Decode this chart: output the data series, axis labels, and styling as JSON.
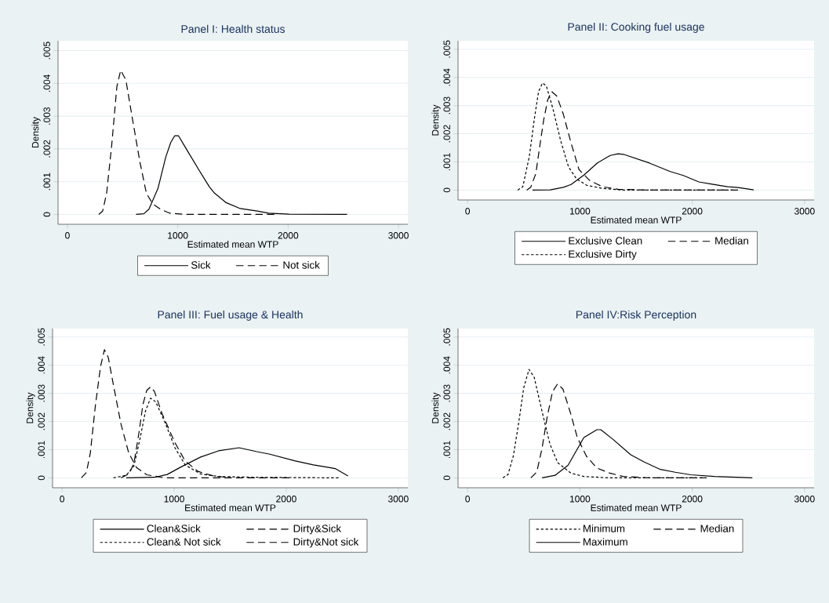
{
  "chart_data": [
    {
      "type": "line",
      "title": "Panel I: Health status",
      "xlabel": "Estimated mean WTP",
      "ylabel": "Density",
      "xlim": [
        -85,
        3085
      ],
      "ylim": [
        -0.0003,
        0.0053
      ],
      "xticks": [
        0,
        1000,
        2000,
        3000
      ],
      "yticks": [
        0,
        {
          "value": 0.001,
          "label": ".001"
        },
        {
          "value": 0.002,
          "label": ".002"
        },
        {
          "value": 0.003,
          "label": ".003"
        },
        {
          "value": 0.004,
          "label": ".004"
        },
        {
          "value": 0.005,
          "label": ".005"
        }
      ],
      "grid": "y",
      "legend": "bottom",
      "marker": "none",
      "series": [
        {
          "name": "Sick",
          "color": "#000000",
          "line_style": "solid",
          "x": [
            622,
            692,
            739,
            821,
            891,
            937,
            972,
            1007,
            1077,
            1193,
            1287,
            1333,
            1438,
            1566,
            1730,
            1823,
            2009,
            2534
          ],
          "values": [
            0,
            2e-05,
            0.00016,
            0.0008,
            0.00175,
            0.0022,
            0.0024,
            0.0024,
            0.002,
            0.00135,
            0.00084,
            0.00065,
            0.00036,
            0.00018,
            0.0001,
            4e-05,
            1e-05,
            0
          ]
        },
        {
          "name": "Not sick",
          "color": "#000000",
          "line_style": "dashed",
          "x": [
            284,
            319,
            355,
            401,
            448,
            483,
            530,
            590,
            657,
            716,
            774,
            844,
            925,
            1077,
            1904
          ],
          "values": [
            0,
            0.0001,
            0.00064,
            0.0021,
            0.0039,
            0.0044,
            0.0041,
            0.0029,
            0.0016,
            0.00064,
            0.00032,
            0.00016,
            4e-05,
            0,
            0
          ]
        }
      ]
    },
    {
      "type": "line",
      "title": "Panel II: Cooking fuel usage",
      "xlabel": "Estimated mean WTP",
      "ylabel": "Density",
      "xlim": [
        -85,
        3085
      ],
      "ylim": [
        -0.00035,
        0.0053
      ],
      "xticks": [
        0,
        1000,
        2000,
        3000
      ],
      "yticks": [
        0,
        {
          "value": 0.001,
          "label": ".001"
        },
        {
          "value": 0.002,
          "label": ".002"
        },
        {
          "value": 0.003,
          "label": ".003"
        },
        {
          "value": 0.004,
          "label": ".004"
        },
        {
          "value": 0.005,
          "label": ".005"
        }
      ],
      "grid": "y",
      "legend": "bottom",
      "marker": "none",
      "series": [
        {
          "name": "Exclusive Clean",
          "color": "#000000",
          "line_style": "solid",
          "x": [
            578,
            736,
            853,
            922,
            1038,
            1154,
            1270,
            1340,
            1387,
            1619,
            1804,
            1920,
            2059,
            2176,
            2315,
            2408,
            2547
          ],
          "values": [
            0,
            1e-05,
            0.0001,
            0.0002,
            0.00054,
            0.00096,
            0.00123,
            0.00129,
            0.00127,
            0.00096,
            0.00066,
            0.00052,
            0.00029,
            0.00021,
            0.00012,
            9e-05,
            1e-05
          ]
        },
        {
          "name": "Median",
          "color": "#000000",
          "line_style": "dashed",
          "x": [
            527,
            562,
            608,
            643,
            678,
            713,
            748,
            794,
            852,
            922,
            992,
            1085,
            1200,
            1340,
            1619,
            2419
          ],
          "values": [
            0,
            0.0001,
            0.00059,
            0.00157,
            0.0025,
            0.0032,
            0.0035,
            0.00334,
            0.0027,
            0.00166,
            0.00073,
            0.00035,
            0.00012,
            3e-05,
            0,
            0
          ]
        },
        {
          "name": "Exclusive Dirty",
          "color": "#000000",
          "line_style": "dotted",
          "x": [
            446,
            492,
            550,
            597,
            632,
            667,
            701,
            759,
            829,
            899,
            969,
            1061,
            1200,
            1386,
            2361
          ],
          "values": [
            0,
            0.00012,
            0.0012,
            0.0026,
            0.0035,
            0.0038,
            0.0037,
            0.0029,
            0.00175,
            0.00082,
            0.0004,
            0.00017,
            6e-05,
            0,
            0
          ]
        }
      ]
    },
    {
      "type": "line",
      "title": "Panel III: Fuel usage & Health",
      "xlabel": "Estimated mean WTP",
      "ylabel": "Density",
      "xlim": [
        -85,
        3085
      ],
      "ylim": [
        -0.00035,
        0.0053
      ],
      "xticks": [
        0,
        1000,
        2000,
        3000
      ],
      "yticks": [
        0,
        {
          "value": 0.001,
          "label": ".001"
        },
        {
          "value": 0.002,
          "label": ".002"
        },
        {
          "value": 0.003,
          "label": ".003"
        },
        {
          "value": 0.004,
          "label": ".004"
        },
        {
          "value": 0.005,
          "label": ".005"
        }
      ],
      "grid": "y",
      "legend": "bottom",
      "marker": "none",
      "series": [
        {
          "name": "Clean&Sick",
          "color": "#000000",
          "line_style": "solid",
          "x": [
            572,
            824,
            938,
            1053,
            1236,
            1396,
            1579,
            1739,
            1854,
            2082,
            2243,
            2380,
            2437,
            2551
          ],
          "values": [
            0,
            2e-05,
            0.00012,
            0.00037,
            0.00074,
            0.00096,
            0.00107,
            0.00093,
            0.00084,
            0.0006,
            0.00046,
            0.00037,
            0.00033,
            7e-05
          ]
        },
        {
          "name": "Dirty&Sick",
          "color": "#000000",
          "line_style": "dashed",
          "x": [
            526,
            595,
            641,
            686,
            721,
            755,
            789,
            824,
            892,
            1007,
            1098,
            1213,
            1350,
            1510
          ],
          "values": [
            0,
            0.00014,
            0.00051,
            0.0016,
            0.0026,
            0.0031,
            0.00323,
            0.00307,
            0.00228,
            0.00125,
            0.0006,
            0.00023,
            7e-05,
            0
          ]
        },
        {
          "name": "Clean& Not sick",
          "color": "#000000",
          "line_style": "dotted",
          "x": [
            458,
            572,
            641,
            698,
            744,
            789,
            835,
            915,
            1007,
            1098,
            1236,
            1396,
            1739,
            2471
          ],
          "values": [
            0,
            9e-05,
            0.00042,
            0.00144,
            0.00237,
            0.00283,
            0.0027,
            0.002,
            0.00107,
            0.00046,
            0.00014,
            5e-05,
            2e-05,
            0
          ]
        },
        {
          "name": "Dirty&Not sick",
          "color": "#000000",
          "line_style": "dashed",
          "x": [
            172,
            217,
            252,
            297,
            343,
            378,
            412,
            458,
            526,
            595,
            664,
            755,
            915,
            2059
          ],
          "values": [
            0,
            0.00019,
            0.00088,
            0.00256,
            0.00395,
            0.00455,
            0.00428,
            0.0033,
            0.0019,
            0.00088,
            0.00037,
            0.00011,
            0,
            0
          ]
        }
      ]
    },
    {
      "type": "line",
      "title": "Panel IV:Risk Perception",
      "xlabel": "Estimated mean WTP",
      "ylabel": "Density",
      "xlim": [
        -85,
        3085
      ],
      "ylim": [
        -0.00035,
        0.0053
      ],
      "xticks": [
        0,
        1000,
        2000,
        3000
      ],
      "yticks": [
        0,
        {
          "value": 0.001,
          "label": ".001"
        },
        {
          "value": 0.002,
          "label": ".002"
        },
        {
          "value": 0.003,
          "label": ".003"
        },
        {
          "value": 0.004,
          "label": ".004"
        },
        {
          "value": 0.005,
          "label": ".005"
        }
      ],
      "grid": "y",
      "legend": "bottom",
      "marker": "none",
      "series": [
        {
          "name": "Minimum",
          "color": "#000000",
          "line_style": "dotted",
          "x": [
            314,
            360,
            407,
            453,
            500,
            547,
            593,
            663,
            733,
            802,
            919,
            1035,
            1267,
            2128
          ],
          "values": [
            0,
            0.00012,
            0.00077,
            0.0019,
            0.0032,
            0.00385,
            0.00357,
            0.00236,
            0.0012,
            0.00054,
            0.00017,
            5e-05,
            0,
            0
          ]
        },
        {
          "name": "Median",
          "color": "#000000",
          "line_style": "dashed",
          "x": [
            563,
            616,
            663,
            709,
            756,
            802,
            849,
            919,
            977,
            1058,
            1151,
            1267,
            1384,
            1616,
            2105
          ],
          "values": [
            0,
            0.00021,
            0.00105,
            0.00217,
            0.00306,
            0.00334,
            0.00315,
            0.00227,
            0.00143,
            0.00077,
            0.00035,
            0.00017,
            5e-05,
            0,
            0
          ]
        },
        {
          "name": "Maximum",
          "color": "#000000",
          "line_style": "solid",
          "x": [
            663,
            779,
            895,
            1035,
            1151,
            1186,
            1291,
            1453,
            1570,
            1709,
            1849,
            1988,
            2198,
            2535
          ],
          "values": [
            0,
            9e-05,
            0.00045,
            0.00143,
            0.00171,
            0.00171,
            0.00138,
            0.00082,
            0.00057,
            0.00031,
            0.0002,
            0.00011,
            5e-05,
            0
          ]
        }
      ]
    }
  ]
}
